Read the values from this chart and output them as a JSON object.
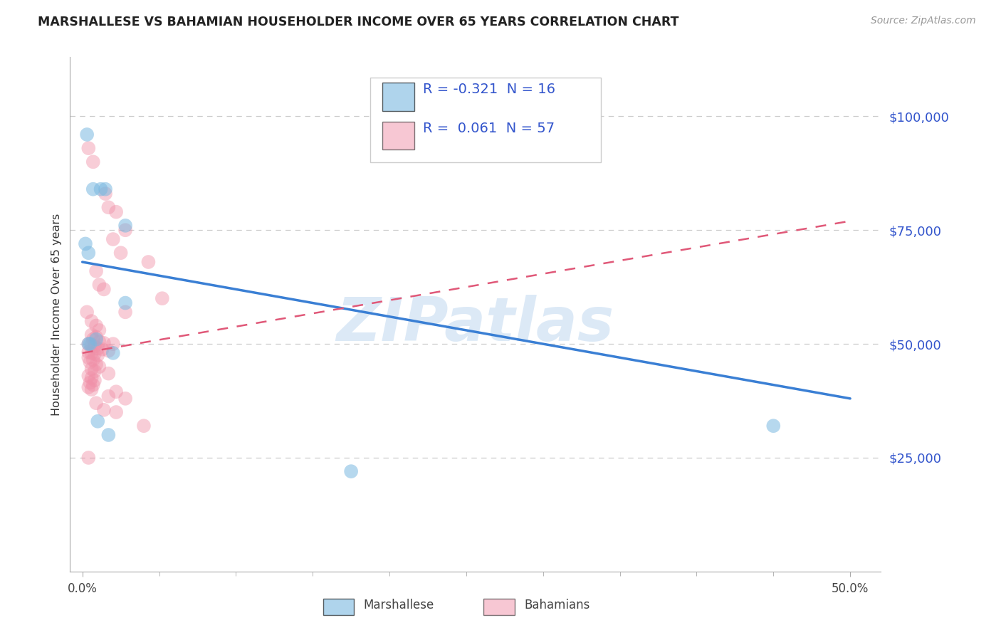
{
  "title": "MARSHALLESE VS BAHAMIAN HOUSEHOLDER INCOME OVER 65 YEARS CORRELATION CHART",
  "source": "Source: ZipAtlas.com",
  "ylabel": "Householder Income Over 65 years",
  "watermark": "ZIPatlas",
  "ytick_labels": [
    "$25,000",
    "$50,000",
    "$75,000",
    "$100,000"
  ],
  "ytick_vals": [
    25000,
    50000,
    75000,
    100000
  ],
  "xtick_labels_shown": [
    "0.0%",
    "50.0%"
  ],
  "xtick_vals_shown": [
    0.0,
    0.5
  ],
  "xtick_minor_vals": [
    0.05,
    0.1,
    0.15,
    0.2,
    0.25,
    0.3,
    0.35,
    0.4,
    0.45
  ],
  "marshallese_color": "#7ab8e0",
  "bahamian_color": "#f090a8",
  "marshallese_line_color": "#3a7fd4",
  "bahamian_line_color": "#e05878",
  "marshallese_r": -0.321,
  "marshallese_n": 16,
  "bahamian_r": 0.061,
  "bahamian_n": 57,
  "marshallese_scatter_x": [
    0.003,
    0.007,
    0.012,
    0.015,
    0.028,
    0.002,
    0.004,
    0.028,
    0.009,
    0.004,
    0.005,
    0.02,
    0.01,
    0.017,
    0.175,
    0.45
  ],
  "marshallese_scatter_y": [
    96000,
    84000,
    84000,
    84000,
    76000,
    72000,
    70000,
    59000,
    51000,
    50000,
    50000,
    48000,
    33000,
    30000,
    22000,
    32000
  ],
  "bahamian_scatter_x": [
    0.004,
    0.007,
    0.015,
    0.017,
    0.022,
    0.028,
    0.02,
    0.025,
    0.043,
    0.009,
    0.011,
    0.014,
    0.028,
    0.006,
    0.009,
    0.011,
    0.006,
    0.009,
    0.007,
    0.011,
    0.014,
    0.004,
    0.006,
    0.008,
    0.01,
    0.013,
    0.017,
    0.004,
    0.006,
    0.008,
    0.01,
    0.004,
    0.007,
    0.005,
    0.009,
    0.011,
    0.006,
    0.008,
    0.017,
    0.004,
    0.006,
    0.008,
    0.005,
    0.007,
    0.004,
    0.006,
    0.022,
    0.017,
    0.028,
    0.009,
    0.014,
    0.022,
    0.004,
    0.04,
    0.02,
    0.003,
    0.052
  ],
  "bahamian_scatter_y": [
    93000,
    90000,
    83000,
    80000,
    79000,
    75000,
    73000,
    70000,
    68000,
    66000,
    63000,
    62000,
    57000,
    55000,
    54000,
    53000,
    52000,
    51500,
    51000,
    50500,
    50200,
    50000,
    49800,
    49500,
    49000,
    48800,
    48500,
    48200,
    48000,
    47800,
    47500,
    47000,
    46500,
    46000,
    45500,
    45000,
    44500,
    44000,
    43500,
    43000,
    42500,
    42000,
    41500,
    41000,
    40500,
    40000,
    39500,
    38500,
    38000,
    37000,
    35500,
    35000,
    25000,
    32000,
    50000,
    57000,
    60000
  ],
  "marshallese_line_x": [
    0.0,
    0.5
  ],
  "marshallese_line_y": [
    68000,
    38000
  ],
  "bahamian_line_x": [
    0.0,
    0.5
  ],
  "bahamian_line_y": [
    48000,
    77000
  ],
  "xlim": [
    -0.008,
    0.52
  ],
  "ylim": [
    0,
    113000
  ],
  "figsize": [
    14.06,
    8.92
  ],
  "dpi": 100
}
